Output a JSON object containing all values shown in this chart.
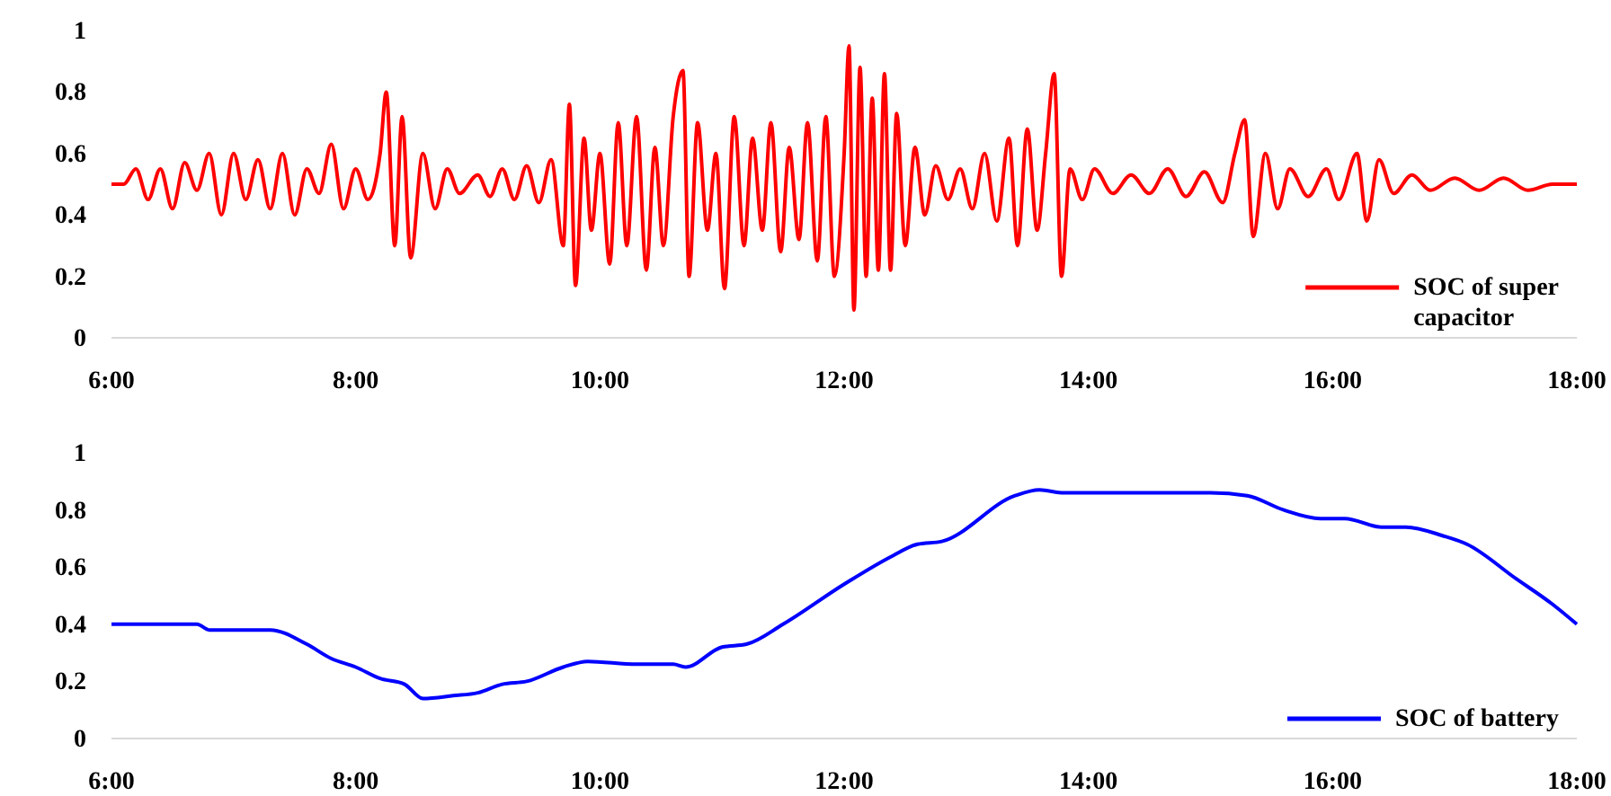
{
  "chart_data": [
    {
      "type": "line",
      "xlim": [
        6,
        18
      ],
      "ylim": [
        0,
        1
      ],
      "yticks": [
        0,
        0.2,
        0.4,
        0.6,
        0.8,
        1
      ],
      "xticks": [
        {
          "value": 6,
          "label": "6:00"
        },
        {
          "value": 8,
          "label": "8:00"
        },
        {
          "value": 10,
          "label": "10:00"
        },
        {
          "value": 12,
          "label": "12:00"
        },
        {
          "value": 14,
          "label": "14:00"
        },
        {
          "value": 16,
          "label": "16:00"
        },
        {
          "value": 18,
          "label": "18:00"
        }
      ],
      "grid": false,
      "legend": "bottom right",
      "marker": "none",
      "line_style": "solid",
      "x": [
        6.0,
        6.1,
        6.2,
        6.3,
        6.4,
        6.5,
        6.6,
        6.7,
        6.8,
        6.9,
        7.0,
        7.1,
        7.2,
        7.3,
        7.4,
        7.5,
        7.6,
        7.7,
        7.8,
        7.9,
        8.0,
        8.1,
        8.2,
        8.25,
        8.32,
        8.38,
        8.45,
        8.55,
        8.65,
        8.75,
        8.85,
        9.0,
        9.1,
        9.2,
        9.3,
        9.4,
        9.5,
        9.6,
        9.7,
        9.75,
        9.8,
        9.87,
        9.93,
        10.0,
        10.08,
        10.15,
        10.22,
        10.3,
        10.38,
        10.45,
        10.52,
        10.6,
        10.68,
        10.73,
        10.8,
        10.88,
        10.95,
        11.02,
        11.1,
        11.18,
        11.25,
        11.33,
        11.4,
        11.48,
        11.55,
        11.63,
        11.7,
        11.78,
        11.85,
        11.92,
        12.0,
        12.04,
        12.08,
        12.13,
        12.18,
        12.23,
        12.28,
        12.33,
        12.38,
        12.43,
        12.5,
        12.58,
        12.66,
        12.75,
        12.85,
        12.95,
        13.05,
        13.15,
        13.25,
        13.35,
        13.42,
        13.5,
        13.58,
        13.65,
        13.72,
        13.78,
        13.85,
        13.95,
        14.05,
        14.2,
        14.35,
        14.5,
        14.65,
        14.8,
        14.95,
        15.1,
        15.2,
        15.28,
        15.35,
        15.45,
        15.55,
        15.65,
        15.8,
        15.95,
        16.05,
        16.2,
        16.28,
        16.38,
        16.5,
        16.65,
        16.8,
        17.0,
        17.2,
        17.4,
        17.6,
        17.8,
        18.0
      ],
      "series": [
        {
          "name": "SOC of super capacitor",
          "color": "#ff0000",
          "values": [
            0.5,
            0.5,
            0.55,
            0.45,
            0.55,
            0.42,
            0.57,
            0.48,
            0.6,
            0.4,
            0.6,
            0.45,
            0.58,
            0.42,
            0.6,
            0.4,
            0.55,
            0.47,
            0.63,
            0.42,
            0.55,
            0.45,
            0.6,
            0.8,
            0.3,
            0.72,
            0.26,
            0.6,
            0.42,
            0.55,
            0.47,
            0.53,
            0.46,
            0.55,
            0.45,
            0.56,
            0.44,
            0.58,
            0.3,
            0.76,
            0.17,
            0.65,
            0.35,
            0.6,
            0.24,
            0.7,
            0.3,
            0.72,
            0.22,
            0.62,
            0.3,
            0.72,
            0.87,
            0.2,
            0.7,
            0.35,
            0.6,
            0.16,
            0.72,
            0.3,
            0.65,
            0.35,
            0.7,
            0.28,
            0.62,
            0.32,
            0.7,
            0.25,
            0.72,
            0.2,
            0.6,
            0.95,
            0.09,
            0.88,
            0.2,
            0.78,
            0.22,
            0.86,
            0.22,
            0.73,
            0.3,
            0.62,
            0.4,
            0.56,
            0.45,
            0.55,
            0.42,
            0.6,
            0.38,
            0.65,
            0.3,
            0.68,
            0.35,
            0.6,
            0.86,
            0.2,
            0.55,
            0.45,
            0.55,
            0.47,
            0.53,
            0.47,
            0.55,
            0.46,
            0.54,
            0.44,
            0.6,
            0.71,
            0.33,
            0.6,
            0.42,
            0.55,
            0.46,
            0.55,
            0.45,
            0.6,
            0.38,
            0.58,
            0.47,
            0.53,
            0.48,
            0.52,
            0.48,
            0.52,
            0.48,
            0.5,
            0.5
          ]
        }
      ]
    },
    {
      "type": "line",
      "xlim": [
        6,
        18
      ],
      "ylim": [
        0,
        1
      ],
      "yticks": [
        0,
        0.2,
        0.4,
        0.6,
        0.8,
        1
      ],
      "xticks": [
        {
          "value": 6,
          "label": "6:00"
        },
        {
          "value": 8,
          "label": "8:00"
        },
        {
          "value": 10,
          "label": "10:00"
        },
        {
          "value": 12,
          "label": "12:00"
        },
        {
          "value": 14,
          "label": "14:00"
        },
        {
          "value": 16,
          "label": "16:00"
        },
        {
          "value": 18,
          "label": "18:00"
        }
      ],
      "grid": false,
      "legend": "bottom right",
      "marker": "none",
      "line_style": "solid",
      "x": [
        6.0,
        6.7,
        6.8,
        7.3,
        7.6,
        7.8,
        8.0,
        8.2,
        8.4,
        8.55,
        8.8,
        9.0,
        9.2,
        9.4,
        9.7,
        9.9,
        10.3,
        10.6,
        10.7,
        11.0,
        11.2,
        11.5,
        12.0,
        12.4,
        12.6,
        12.8,
        13.4,
        13.6,
        13.8,
        14.0,
        14.5,
        15.0,
        15.3,
        15.6,
        15.9,
        16.1,
        16.4,
        16.6,
        16.9,
        17.1,
        17.5,
        17.8,
        18.0
      ],
      "series": [
        {
          "name": "SOC of battery",
          "color": "#0000ff",
          "values": [
            0.4,
            0.4,
            0.38,
            0.38,
            0.33,
            0.28,
            0.25,
            0.21,
            0.19,
            0.14,
            0.15,
            0.16,
            0.19,
            0.2,
            0.25,
            0.27,
            0.26,
            0.26,
            0.25,
            0.32,
            0.33,
            0.4,
            0.54,
            0.64,
            0.68,
            0.69,
            0.85,
            0.87,
            0.86,
            0.86,
            0.86,
            0.86,
            0.85,
            0.8,
            0.77,
            0.77,
            0.74,
            0.74,
            0.71,
            0.68,
            0.56,
            0.47,
            0.4
          ]
        }
      ]
    }
  ]
}
